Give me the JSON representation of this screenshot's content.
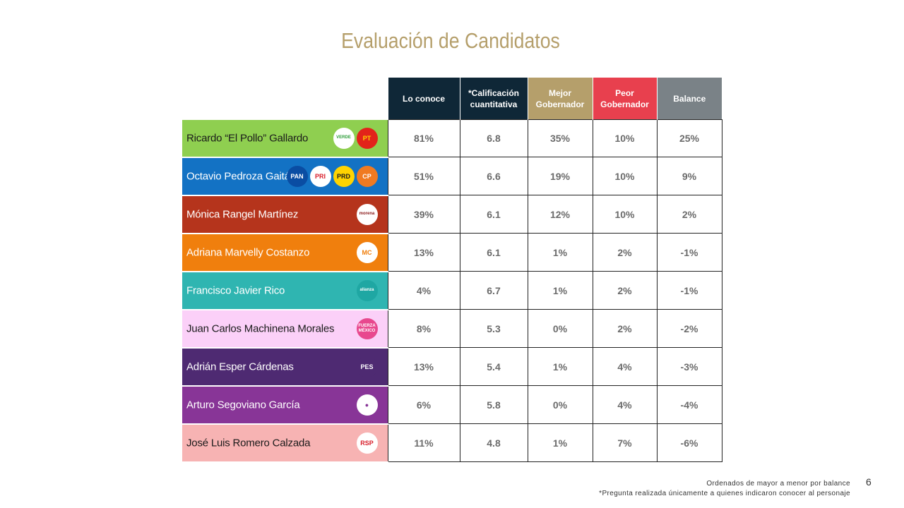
{
  "title": "Evaluación de Candidatos",
  "columns": [
    "Lo conoce",
    "*Calificación cuantitativa",
    "Mejor Gobernador",
    "Peor Gobernador",
    "Balance"
  ],
  "column_colors": [
    "#0f2737",
    "#0f2737",
    "#b59f6b",
    "#e8404e",
    "#7a8287"
  ],
  "rows": [
    {
      "name": "Ricardo “El Pollo” Gallardo",
      "color": "#8fcf50",
      "text_color": "#1a1a1a",
      "logos": [
        {
          "icon": "verde-logo",
          "text": "VERDE",
          "fg": "#2e9e3a",
          "bg": "#ffffff"
        },
        {
          "icon": "pt-logo",
          "text": "PT",
          "fg": "#ffd400",
          "bg": "#e2231a"
        }
      ],
      "values": [
        "81%",
        "6.8",
        "35%",
        "10%",
        "25%"
      ]
    },
    {
      "name": "Octavio Pedroza Gaitán",
      "color": "#1372c4",
      "text_color": "#ffffff",
      "logos": [
        {
          "icon": "pan-logo",
          "text": "PAN",
          "fg": "#ffffff",
          "bg": "#0a4da3"
        },
        {
          "icon": "pri-logo",
          "text": "PRI",
          "fg": "#d81e2a",
          "bg": "#ffffff"
        },
        {
          "icon": "prd-logo",
          "text": "PRD",
          "fg": "#1a1a1a",
          "bg": "#ffd400"
        },
        {
          "icon": "cp-logo",
          "text": "CP",
          "fg": "#ffffff",
          "bg": "#f07a21"
        }
      ],
      "values": [
        "51%",
        "6.6",
        "19%",
        "10%",
        "9%"
      ]
    },
    {
      "name": "Mónica Rangel Martínez",
      "color": "#b5341c",
      "text_color": "#ffffff",
      "logos": [
        {
          "icon": "morena-logo",
          "text": "morena",
          "fg": "#8b1a1a",
          "bg": "#ffffff"
        }
      ],
      "values": [
        "39%",
        "6.1",
        "12%",
        "10%",
        "2%"
      ]
    },
    {
      "name": "Adriana Marvelly Costanzo",
      "color": "#f07f0d",
      "text_color": "#ffffff",
      "logos": [
        {
          "icon": "movimiento-ciudadano-logo",
          "text": "MC",
          "fg": "#f07f0d",
          "bg": "#ffffff"
        }
      ],
      "values": [
        "13%",
        "6.1",
        "1%",
        "2%",
        "-1%"
      ]
    },
    {
      "name": "Francisco Javier Rico",
      "color": "#2fb5b1",
      "text_color": "#ffffff",
      "logos": [
        {
          "icon": "alianza-logo",
          "text": "alianza",
          "fg": "#ffffff",
          "bg": "#1fa7a3"
        }
      ],
      "values": [
        "4%",
        "6.7",
        "1%",
        "2%",
        "-1%"
      ]
    },
    {
      "name": "Juan Carlos Machinena Morales",
      "color": "#fbd0f8",
      "text_color": "#1a1a1a",
      "logos": [
        {
          "icon": "fuerza-mexico-logo",
          "text": "FUERZA MÉXICO",
          "fg": "#ffffff",
          "bg": "#e8488e"
        }
      ],
      "values": [
        "8%",
        "5.3",
        "0%",
        "2%",
        "-2%"
      ]
    },
    {
      "name": "Adrián Esper Cárdenas",
      "color": "#4e2a72",
      "text_color": "#ffffff",
      "logos": [
        {
          "icon": "pes-logo",
          "text": "PES",
          "fg": "#ffffff",
          "bg": "#4e2a72"
        }
      ],
      "values": [
        "13%",
        "5.4",
        "1%",
        "4%",
        "-3%"
      ]
    },
    {
      "name": "Arturo Segoviano García",
      "color": "#883597",
      "text_color": "#ffffff",
      "logos": [
        {
          "icon": "independiente-logo",
          "text": "●",
          "fg": "#883597",
          "bg": "#ffffff"
        }
      ],
      "values": [
        "6%",
        "5.8",
        "0%",
        "4%",
        "-4%"
      ]
    },
    {
      "name": "José Luis Romero Calzada",
      "color": "#f7b3b3",
      "text_color": "#1a1a1a",
      "logos": [
        {
          "icon": "rsp-logo",
          "text": "RSP",
          "fg": "#d81e2a",
          "bg": "#ffffff"
        }
      ],
      "values": [
        "11%",
        "4.8",
        "1%",
        "7%",
        "-6%"
      ]
    }
  ],
  "footnote_order": "Ordenados de mayor a menor por balance",
  "footnote_question": "*Pregunta realizada únicamente a quienes indicaron conocer al personaje",
  "page_number": "6",
  "chart_data": {
    "type": "table",
    "title": "Evaluación de Candidatos",
    "columns": [
      "Lo conoce",
      "*Calificación cuantitativa",
      "Mejor Gobernador",
      "Peor Gobernador",
      "Balance"
    ],
    "rows": [
      {
        "label": "Ricardo “El Pollo” Gallardo",
        "values": [
          "81%",
          "6.8",
          "35%",
          "10%",
          "25%"
        ]
      },
      {
        "label": "Octavio Pedroza Gaitán",
        "values": [
          "51%",
          "6.6",
          "19%",
          "10%",
          "9%"
        ]
      },
      {
        "label": "Mónica Rangel Martínez",
        "values": [
          "39%",
          "6.1",
          "12%",
          "10%",
          "2%"
        ]
      },
      {
        "label": "Adriana Marvelly Costanzo",
        "values": [
          "13%",
          "6.1",
          "1%",
          "2%",
          "-1%"
        ]
      },
      {
        "label": "Francisco Javier Rico",
        "values": [
          "4%",
          "6.7",
          "1%",
          "2%",
          "-1%"
        ]
      },
      {
        "label": "Juan Carlos Machinena Morales",
        "values": [
          "8%",
          "5.3",
          "0%",
          "2%",
          "-2%"
        ]
      },
      {
        "label": "Adrián Esper Cárdenas",
        "values": [
          "13%",
          "5.4",
          "1%",
          "4%",
          "-3%"
        ]
      },
      {
        "label": "Arturo Segoviano García",
        "values": [
          "6%",
          "5.8",
          "0%",
          "4%",
          "-4%"
        ]
      },
      {
        "label": "José Luis Romero Calzada",
        "values": [
          "11%",
          "4.8",
          "1%",
          "7%",
          "-6%"
        ]
      }
    ]
  }
}
